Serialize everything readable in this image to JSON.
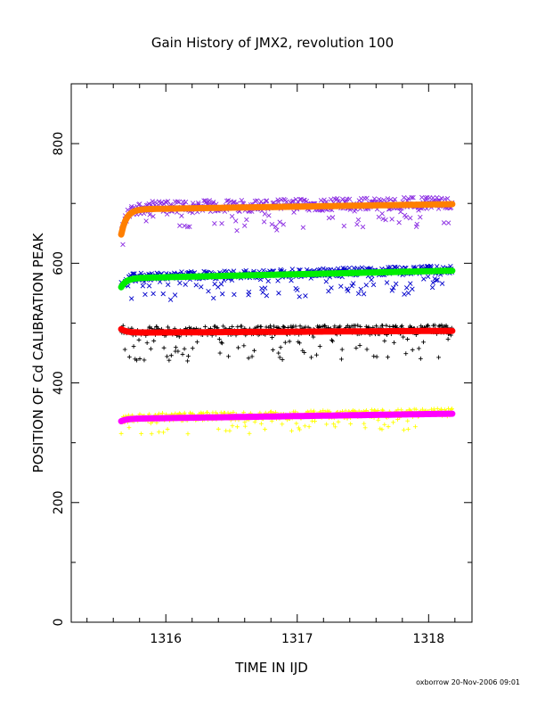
{
  "chart_data": {
    "type": "scatter",
    "title": "Gain History of JMX2, revolution 100",
    "xlabel": "TIME IN IJD",
    "ylabel": "POSITION OF Cd CALIBRATION PEAK",
    "xlim": [
      1315.28,
      1318.33
    ],
    "ylim": [
      0,
      900
    ],
    "xticks": [
      1316,
      1317,
      1318
    ],
    "yticks": [
      0,
      200,
      400,
      600,
      800
    ],
    "time_range": [
      1315.66,
      1318.18
    ],
    "grid": false,
    "series": [
      {
        "marker": "x",
        "color": "#8a2be2",
        "fit_color": "#ff7f00",
        "fit": {
          "start": 648,
          "plateau": 690,
          "slope": 3.5
        },
        "scatter_spread": [
          -40,
          18
        ]
      },
      {
        "marker": "x",
        "color": "#0000cc",
        "fit_color": "#00ee00",
        "fit": {
          "start": 560,
          "plateau": 575,
          "slope": 5.0
        },
        "scatter_spread": [
          -38,
          12
        ]
      },
      {
        "marker": "+",
        "color": "#000000",
        "fit_color": "#ff0000",
        "fit": {
          "start": 490,
          "plateau": 484,
          "slope": 1.2
        },
        "scatter_spread": [
          -48,
          14
        ]
      },
      {
        "marker": "+",
        "color": "#ffff00",
        "fit_color": "#ff00ff",
        "fit": {
          "start": 336,
          "plateau": 340,
          "slope": 3.4
        },
        "scatter_spread": [
          -28,
          12
        ]
      }
    ]
  },
  "footer": "oxborrow 20-Nov-2006 09:01"
}
